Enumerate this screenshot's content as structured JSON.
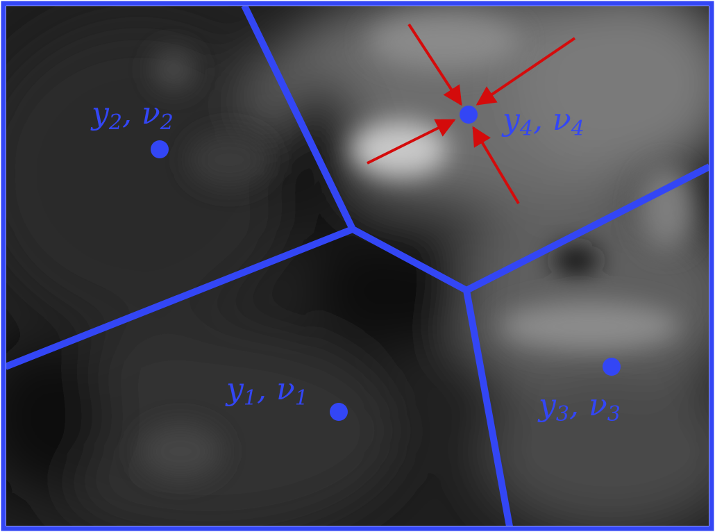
{
  "diagram": {
    "colors": {
      "cell_edge": "#3346f5",
      "site": "#3346f5",
      "label": "#3346f5",
      "arrow": "#d40b0b",
      "frame": "#3346f5"
    },
    "sites": [
      {
        "id": "site-1",
        "var": "y",
        "sub": "1",
        "var2": "ν",
        "sub2": "1"
      },
      {
        "id": "site-2",
        "var": "y",
        "sub": "2",
        "var2": "ν",
        "sub2": "2"
      },
      {
        "id": "site-3",
        "var": "y",
        "sub": "3",
        "var2": "ν",
        "sub2": "3"
      },
      {
        "id": "site-4",
        "var": "y",
        "sub": "4",
        "var2": "ν",
        "sub2": "4"
      }
    ],
    "inward_arrows_target": "site-4",
    "inward_arrow_count": 4
  }
}
